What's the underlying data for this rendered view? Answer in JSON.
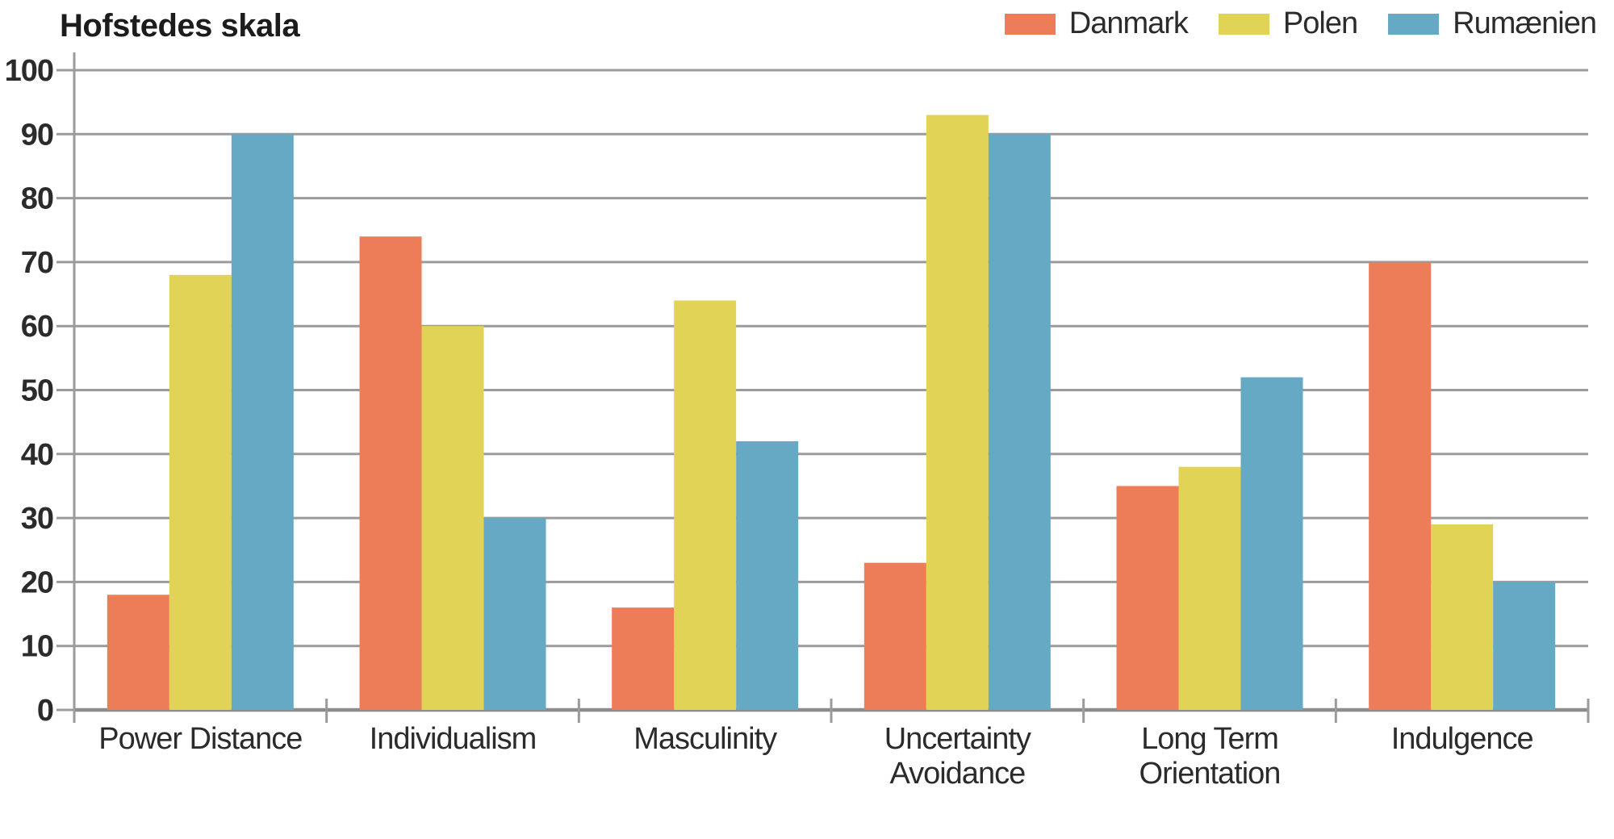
{
  "title": "Hofstedes skala",
  "chart_data": {
    "type": "bar",
    "title": "Hofstedes skala",
    "categories": [
      "Power Distance",
      "Individualism",
      "Masculinity",
      "Uncertainty Avoidance",
      "Long Term Orientation",
      "Indulgence"
    ],
    "category_label_lines": [
      [
        "Power Distance"
      ],
      [
        "Individualism"
      ],
      [
        "Masculinity"
      ],
      [
        "Uncertainty",
        "Avoidance"
      ],
      [
        "Long Term",
        "Orientation"
      ],
      [
        "Indulgence"
      ]
    ],
    "series": [
      {
        "name": "Danmark",
        "color": "#ED7C58",
        "values": [
          18,
          74,
          16,
          23,
          35,
          70
        ]
      },
      {
        "name": "Polen",
        "color": "#E0D356",
        "values": [
          68,
          60,
          64,
          93,
          38,
          29
        ]
      },
      {
        "name": "Rumænien",
        "color": "#66A9C4",
        "values": [
          90,
          30,
          42,
          90,
          52,
          20
        ]
      }
    ],
    "xlabel": "",
    "ylabel": "",
    "ylim": [
      0,
      100
    ],
    "yticks": [
      0,
      10,
      20,
      30,
      40,
      50,
      60,
      70,
      80,
      90,
      100
    ],
    "grid": "horizontal",
    "legend_position": "top-right",
    "grid_color": "#9B9B9B",
    "axis_color": "#8C8C8C",
    "text_color": "#2B2B2B"
  }
}
